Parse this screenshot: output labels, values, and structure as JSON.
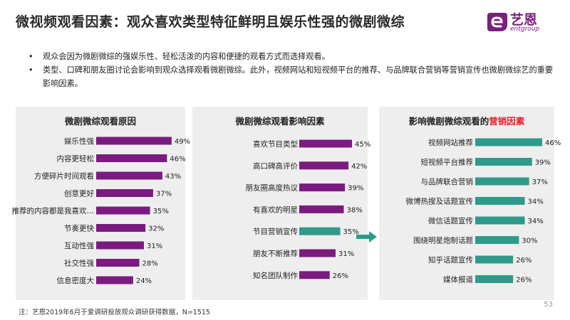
{
  "header": {
    "title": "微视频观看因素：观众喜欢类型特征鲜明且娱乐性强的微剧微综",
    "logo_text": "艺恩",
    "logo_sub": "entgroup"
  },
  "bullets": [
    "观众会因为微剧微综的强娱乐性、轻松活泼的内容和便捷的观看方式而选择观看。",
    "类型、口碑和朋友圈讨论会影响到观众选择观看微剧微综。此外，视频网站和短视频平台的推荐、与品牌联合营销等营销宣传也微剧微综艺的重要影响因素。"
  ],
  "bullet_symbol": "•",
  "colors": {
    "purple": "#7b1b80",
    "teal": "#2f9a8c",
    "highlight": "#e8202a",
    "logo": "#7a1f7a"
  },
  "chart_data": [
    {
      "type": "bar",
      "orientation": "horizontal",
      "title": "微剧微综观看原因",
      "categories": [
        "娱乐性强",
        "内容更轻松",
        "方便碎片时间观看",
        "创意更好",
        "推荐的内容都是我喜欢…",
        "节奏更快",
        "互动性强",
        "社交性强",
        "信息密度大"
      ],
      "values": [
        49,
        46,
        43,
        37,
        35,
        32,
        31,
        28,
        24
      ],
      "value_labels": [
        "49%",
        "46%",
        "43%",
        "37%",
        "35%",
        "32%",
        "31%",
        "28%",
        "24%"
      ],
      "unit": "%",
      "xlim": [
        0,
        50
      ],
      "bar_colors": [
        "#7b1b80",
        "#7b1b80",
        "#7b1b80",
        "#7b1b80",
        "#7b1b80",
        "#7b1b80",
        "#7b1b80",
        "#7b1b80",
        "#7b1b80"
      ]
    },
    {
      "type": "bar",
      "orientation": "horizontal",
      "title": "微剧微综观看影响因素",
      "categories": [
        "喜欢节目类型",
        "高口碑高评价",
        "朋友圈高度热议",
        "有喜欢的明星",
        "节目营销宣传",
        "朋友不断推荐",
        "知名团队制作"
      ],
      "values": [
        45,
        42,
        39,
        38,
        35,
        31,
        26
      ],
      "value_labels": [
        "45%",
        "42%",
        "39%",
        "38%",
        "35%",
        "31%",
        "26%"
      ],
      "unit": "%",
      "xlim": [
        0,
        45
      ],
      "bar_colors": [
        "#7b1b80",
        "#7b1b80",
        "#7b1b80",
        "#7b1b80",
        "#2f9a8c",
        "#7b1b80",
        "#7b1b80"
      ]
    },
    {
      "type": "bar",
      "orientation": "horizontal",
      "title": "影响微剧微综观看的",
      "title_highlight": "营销因素",
      "categories": [
        "视频网站推荐",
        "短视频平台推荐",
        "与品牌联合营销",
        "微博热搜及话题宣传",
        "微信话题宣传",
        "围绕明星炮制话题",
        "知乎话题宣传",
        "媒体报道"
      ],
      "values": [
        46,
        39,
        37,
        34,
        34,
        30,
        26,
        26
      ],
      "value_labels": [
        "46%",
        "39%",
        "37%",
        "34%",
        "34%",
        "30%",
        "26%",
        "26%"
      ],
      "unit": "%",
      "xlim": [
        0,
        46
      ],
      "bar_colors": [
        "#2f9a8c",
        "#2f9a8c",
        "#2f9a8c",
        "#2f9a8c",
        "#2f9a8c",
        "#2f9a8c",
        "#2f9a8c",
        "#2f9a8c"
      ]
    }
  ],
  "footnote": "注：艺恩2019年6月于爱调研投放观众调研获得数据，N=1515",
  "page_number": "53"
}
